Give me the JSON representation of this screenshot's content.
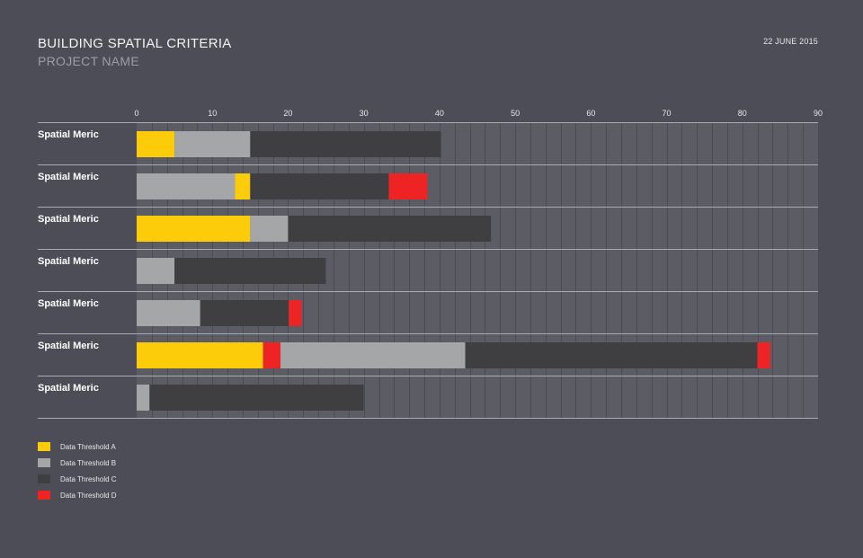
{
  "header": {
    "title": "BUILDING SPATIAL CRITERIA",
    "subtitle": "PROJECT NAME",
    "date": "22 JUNE 2015"
  },
  "colors": {
    "background": "#4c4d56",
    "plot_area": "#5b5c64",
    "grid": "#4a4b53",
    "threshold_a": "#fccb0a",
    "threshold_b": "#a4a6a8",
    "threshold_c": "#3f3f42",
    "threshold_d": "#ee2424"
  },
  "chart_data": {
    "type": "bar",
    "orientation": "horizontal",
    "stacked": true,
    "categories": [
      "Spatial Meric",
      "Spatial Meric",
      "Spatial Meric",
      "Spatial Meric",
      "Spatial Meric",
      "Spatial Meric",
      "Spatial Meric"
    ],
    "xlim": [
      0,
      90
    ],
    "xticks": [
      0,
      10,
      20,
      30,
      40,
      50,
      60,
      70,
      80,
      90
    ],
    "grid": true,
    "segments": [
      [
        {
          "series": "A",
          "start": 0,
          "end": 5
        },
        {
          "series": "B",
          "start": 5,
          "end": 15
        },
        {
          "series": "C",
          "start": 15,
          "end": 40.2
        }
      ],
      [
        {
          "series": "B",
          "start": 0,
          "end": 13
        },
        {
          "series": "A",
          "start": 13,
          "end": 15
        },
        {
          "series": "C",
          "start": 15,
          "end": 33.3
        },
        {
          "series": "D",
          "start": 33.3,
          "end": 38.4
        }
      ],
      [
        {
          "series": "A",
          "start": 0,
          "end": 15
        },
        {
          "series": "B",
          "start": 15,
          "end": 20
        },
        {
          "series": "C",
          "start": 20,
          "end": 46.8
        }
      ],
      [
        {
          "series": "B",
          "start": 0,
          "end": 5
        },
        {
          "series": "C",
          "start": 5,
          "end": 25
        }
      ],
      [
        {
          "series": "B",
          "start": 0,
          "end": 8.4
        },
        {
          "series": "C",
          "start": 8.4,
          "end": 20.1
        },
        {
          "series": "D",
          "start": 20.1,
          "end": 21.8
        }
      ],
      [
        {
          "series": "A",
          "start": 0,
          "end": 16.7
        },
        {
          "series": "D",
          "start": 16.7,
          "end": 19
        },
        {
          "series": "B",
          "start": 19,
          "end": 43.4
        },
        {
          "series": "C",
          "start": 43.4,
          "end": 82
        },
        {
          "series": "D",
          "start": 82,
          "end": 83.7
        }
      ],
      [
        {
          "series": "B",
          "start": 0,
          "end": 1.7
        },
        {
          "series": "C",
          "start": 1.7,
          "end": 30
        }
      ]
    ],
    "legend": [
      {
        "key": "A",
        "label": "Data Threshold A",
        "color": "#fccb0a"
      },
      {
        "key": "B",
        "label": "Data Threshold B",
        "color": "#a4a6a8"
      },
      {
        "key": "C",
        "label": "Data Threshold C",
        "color": "#3f3f42"
      },
      {
        "key": "D",
        "label": "Data Threshold D",
        "color": "#ee2424"
      }
    ],
    "legend_position": "bottom-left"
  }
}
